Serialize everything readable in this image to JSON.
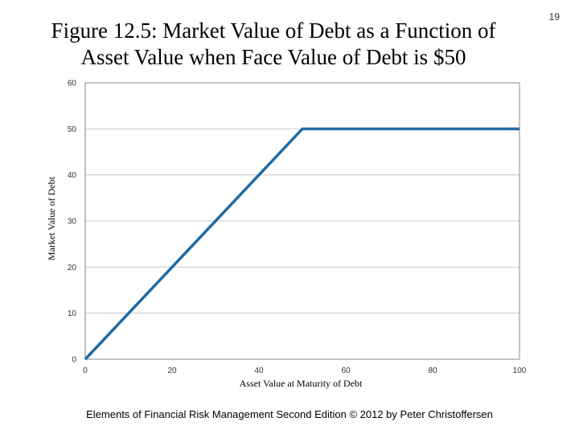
{
  "slide_number": "19",
  "footer": "Elements of Financial Risk Management Second Edition © 2012  by Peter Christoffersen",
  "chart_data": {
    "type": "line",
    "title_lines": [
      "Figure 12.5: Market Value of Debt as a Function of",
      "Asset Value when Face Value of Debt is $50"
    ],
    "xlabel": "Asset Value at Maturity of Debt",
    "ylabel": "Market Value of Debt",
    "xlim": [
      0,
      100
    ],
    "ylim": [
      0,
      60
    ],
    "x_ticks": [
      0,
      20,
      40,
      60,
      80,
      100
    ],
    "y_ticks": [
      0,
      10,
      20,
      30,
      40,
      50,
      60
    ],
    "grid": true,
    "legend": "none",
    "series": [
      {
        "x": [
          0,
          50,
          100
        ],
        "y": [
          0,
          50,
          50
        ],
        "color": "#1f6aa5"
      }
    ],
    "colors": {
      "line": "#1f6aa5",
      "grid": "#c8c8c8",
      "frame": "#888888"
    }
  }
}
